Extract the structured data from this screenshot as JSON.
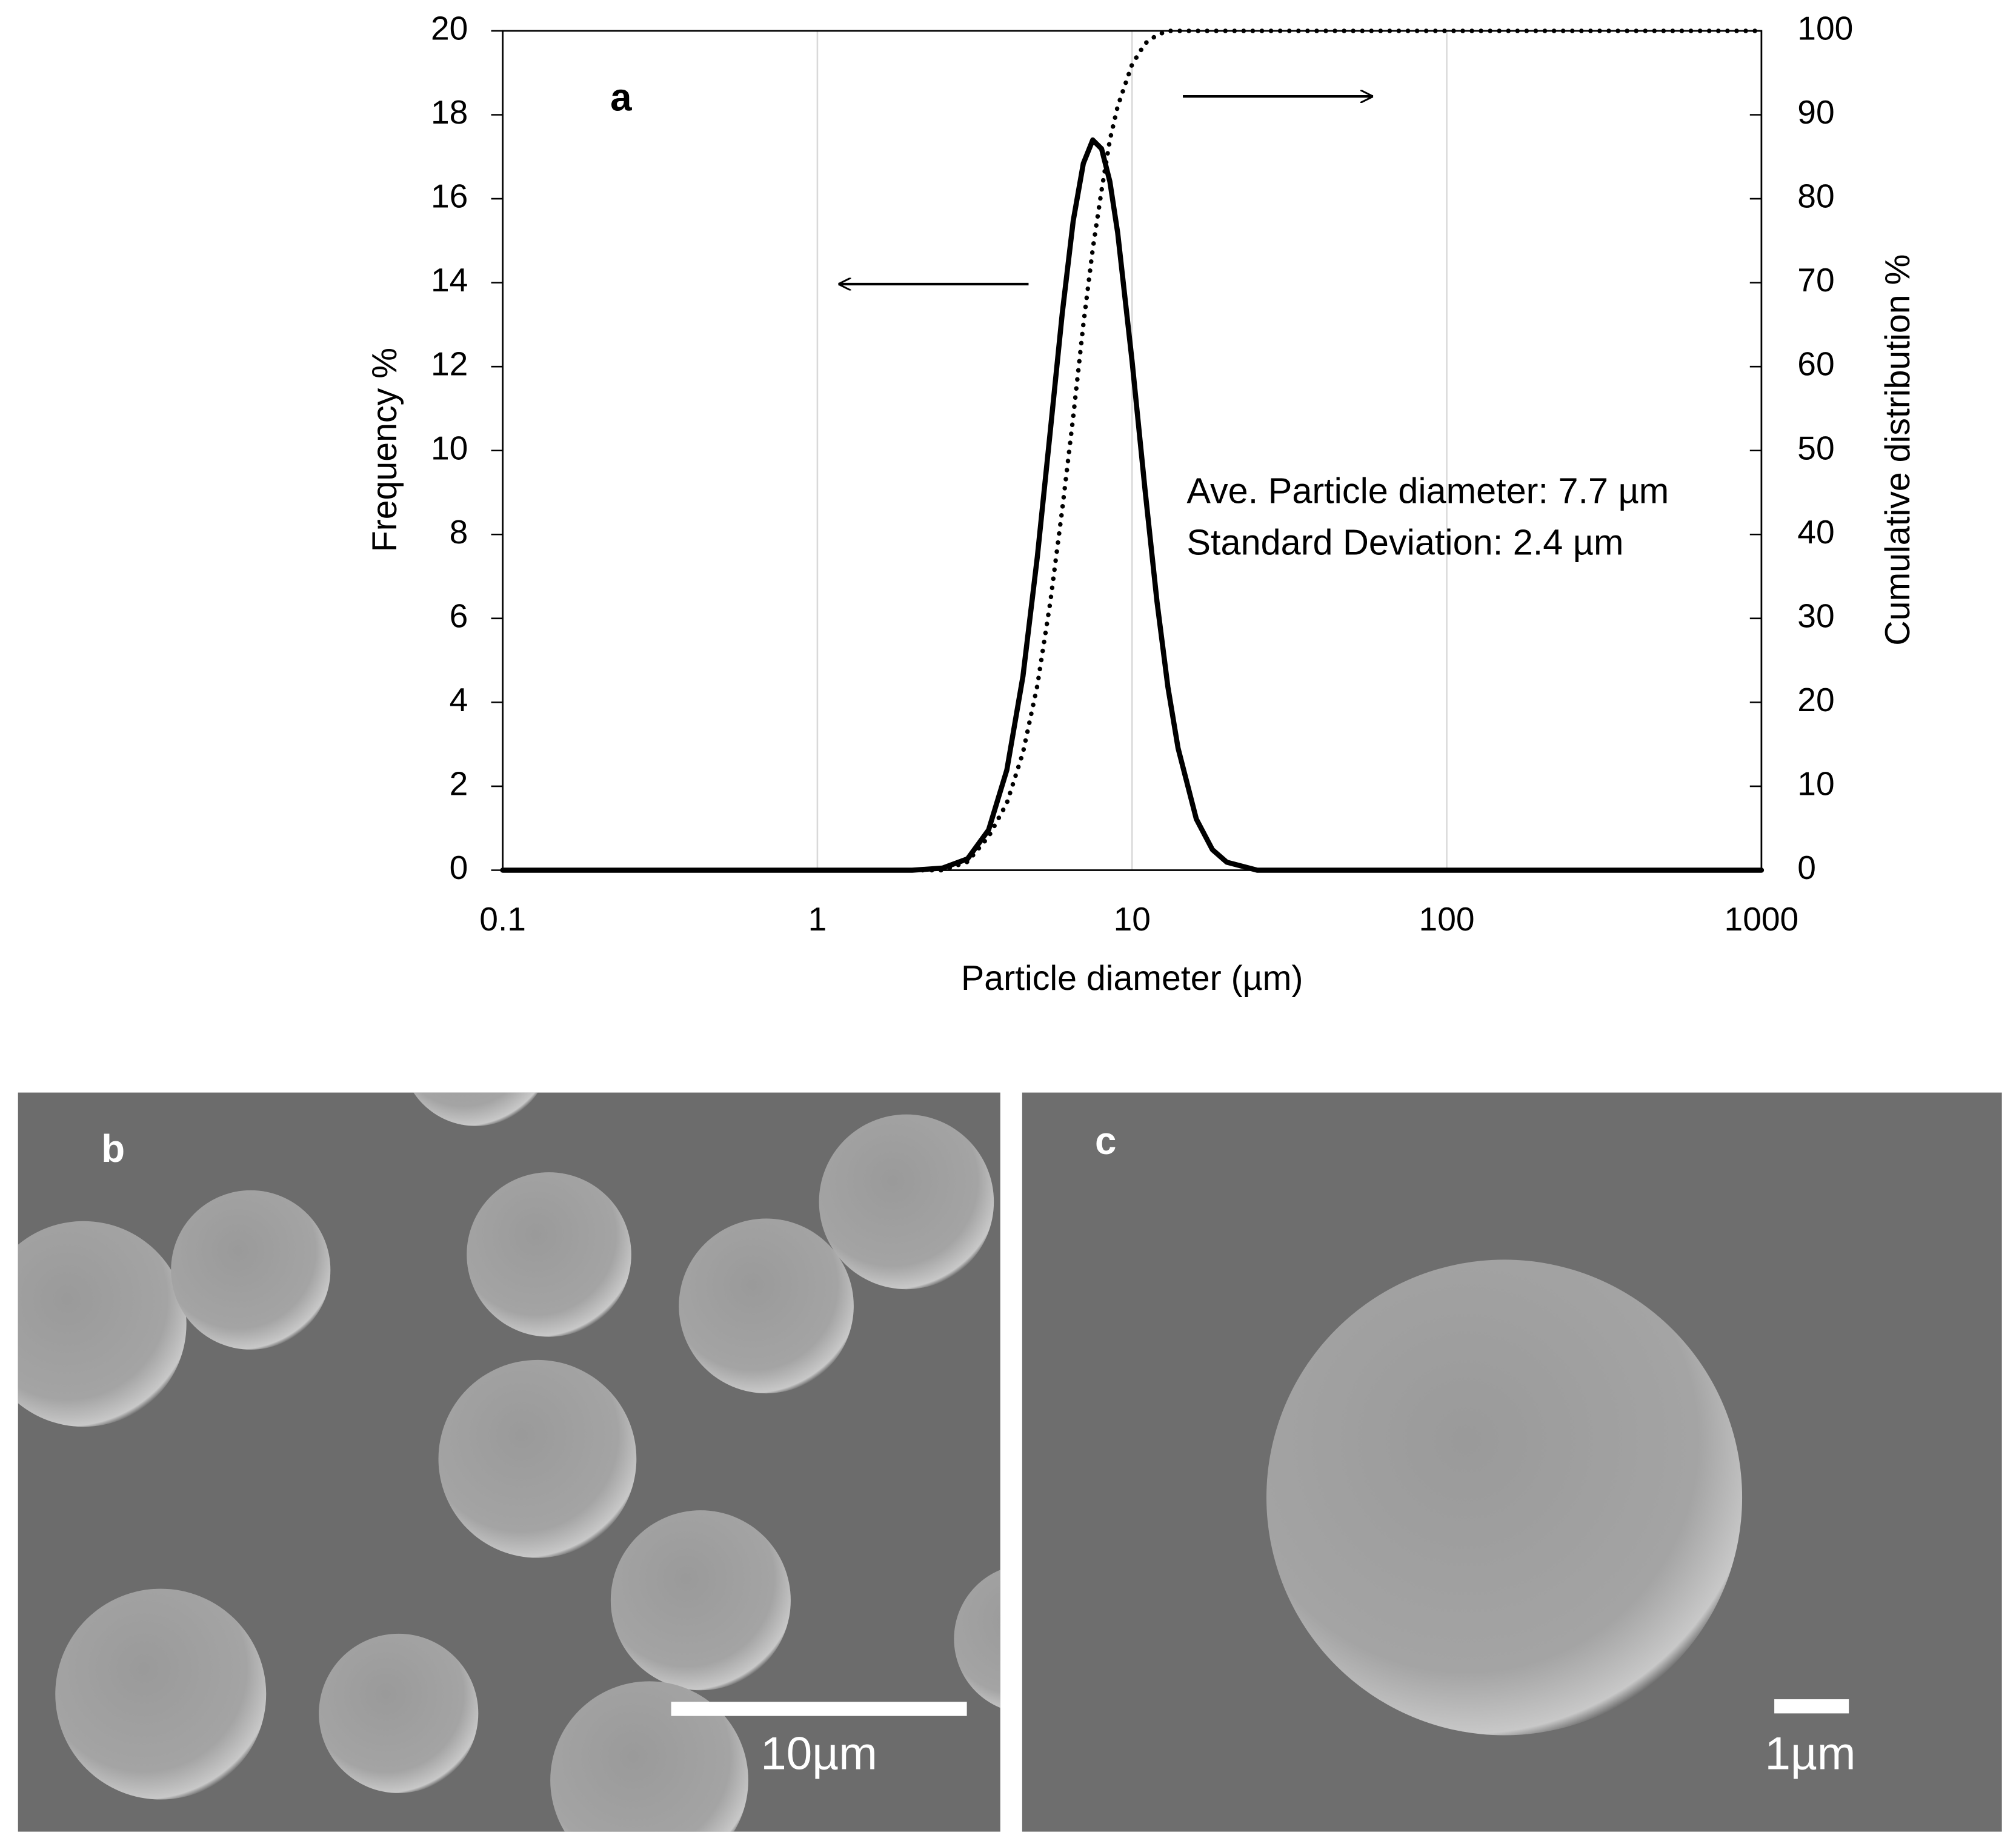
{
  "chart_data": {
    "type": "line",
    "xscale": "log",
    "grid_x": true,
    "annotations": [
      "a",
      "Ave. Particle diameter: 7.7 µm",
      "Standard Deviation: 2.4 µm"
    ],
    "xlabel": "Particle diameter (µm)",
    "ylabel": "Frequency %",
    "y2label": "Cumulative distribution %",
    "x": [
      0.1,
      0.2,
      0.5,
      1,
      2,
      2.5,
      3,
      3.5,
      4,
      4.5,
      5,
      5.5,
      6,
      6.5,
      7,
      7.5,
      8,
      8.5,
      9,
      10,
      11,
      12,
      13,
      14,
      16,
      18,
      20,
      25,
      50,
      100,
      200,
      500,
      1000
    ],
    "series": [
      {
        "color": "#000000",
        "style": "solid",
        "axis": "y",
        "values": [
          0,
          0,
          0,
          0,
          0,
          0.05,
          0.27,
          0.96,
          2.39,
          4.62,
          7.47,
          10.48,
          13.27,
          15.47,
          16.84,
          17.4,
          17.19,
          16.41,
          15.19,
          12.13,
          9.05,
          6.4,
          4.36,
          2.91,
          1.22,
          0.49,
          0.19,
          0,
          0,
          0,
          0,
          0,
          0
        ]
      },
      {
        "color": "#000000",
        "style": "dotted",
        "axis": "y2",
        "values": [
          0,
          0,
          0,
          0,
          0,
          0,
          1,
          4,
          8,
          14,
          22,
          32,
          43,
          54,
          65,
          74,
          81,
          87,
          91,
          96,
          98.5,
          99.5,
          100,
          100,
          100,
          100,
          100,
          100,
          100,
          100,
          100,
          100,
          100
        ]
      }
    ],
    "xlim": [
      0.1,
      1000
    ],
    "xticks": [
      0.1,
      1,
      10,
      100,
      1000
    ],
    "ylim": [
      0,
      20
    ],
    "yticks": [
      0,
      2,
      4,
      6,
      8,
      10,
      12,
      14,
      16,
      18,
      20
    ],
    "y2lim": [
      0,
      100
    ],
    "y2ticks": [
      0,
      10,
      20,
      30,
      40,
      50,
      60,
      70,
      80,
      90,
      100
    ]
  },
  "panels": [
    {
      "label": "b",
      "scale_bar": "10µm"
    },
    {
      "label": "c",
      "scale_bar": "1µm"
    }
  ]
}
